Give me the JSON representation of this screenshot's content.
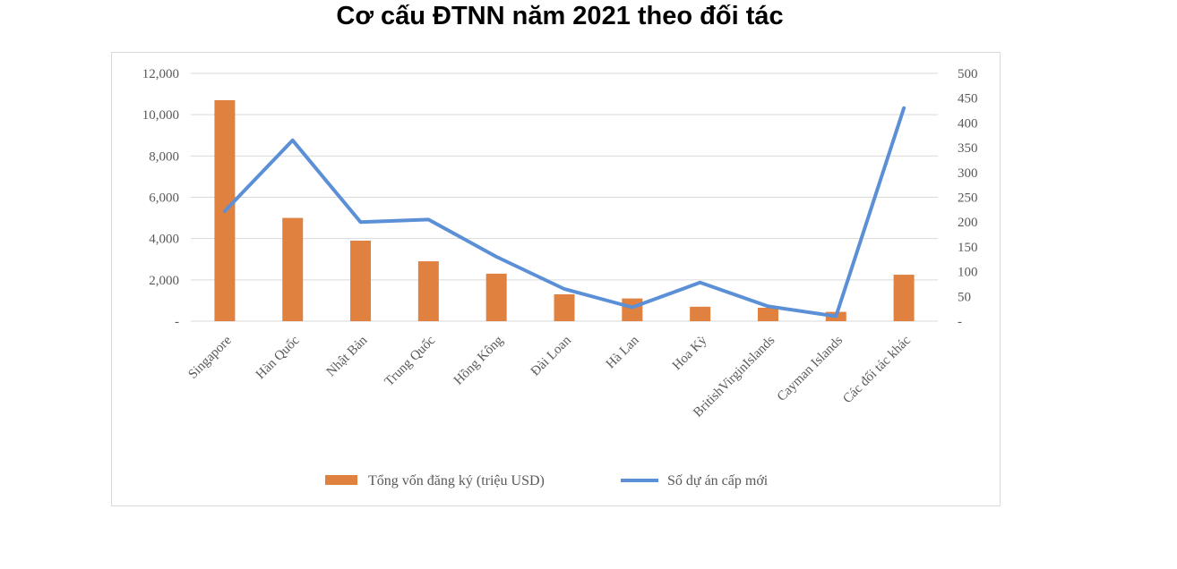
{
  "chart_data": {
    "type": "bar",
    "title": "Cơ cấu ĐTNN năm 2021 theo đối tác",
    "categories": [
      "Singapore",
      "Hàn Quốc",
      "Nhật Bản",
      "Trung Quốc",
      "Hồng Kông",
      "Đài Loan",
      "Hà Lan",
      "Hoa Kỳ",
      "BritishVirginIslands",
      "Cayman Islands",
      "Các đối tác khác"
    ],
    "series": [
      {
        "name": "Tổng vốn đăng ký (triệu USD)",
        "type": "bar",
        "axis": "left",
        "color": "#e0813f",
        "values": [
          10700,
          5000,
          3900,
          2900,
          2300,
          1300,
          1100,
          700,
          650,
          450,
          2250
        ]
      },
      {
        "name": "Số dự án cấp mới",
        "type": "line",
        "axis": "right",
        "color": "#5b8fd6",
        "values": [
          222,
          365,
          200,
          205,
          130,
          65,
          28,
          78,
          30,
          10,
          430
        ]
      }
    ],
    "y_left": {
      "ylim": [
        0,
        12000
      ],
      "ticks": [
        "-",
        "2,000",
        "4,000",
        "6,000",
        "8,000",
        "10,000",
        "12,000"
      ]
    },
    "y_right": {
      "ylim": [
        0,
        500
      ],
      "ticks": [
        "-",
        "50",
        "100",
        "150",
        "200",
        "250",
        "300",
        "350",
        "400",
        "450",
        "500"
      ]
    },
    "grid": true,
    "legend": "bottom"
  }
}
